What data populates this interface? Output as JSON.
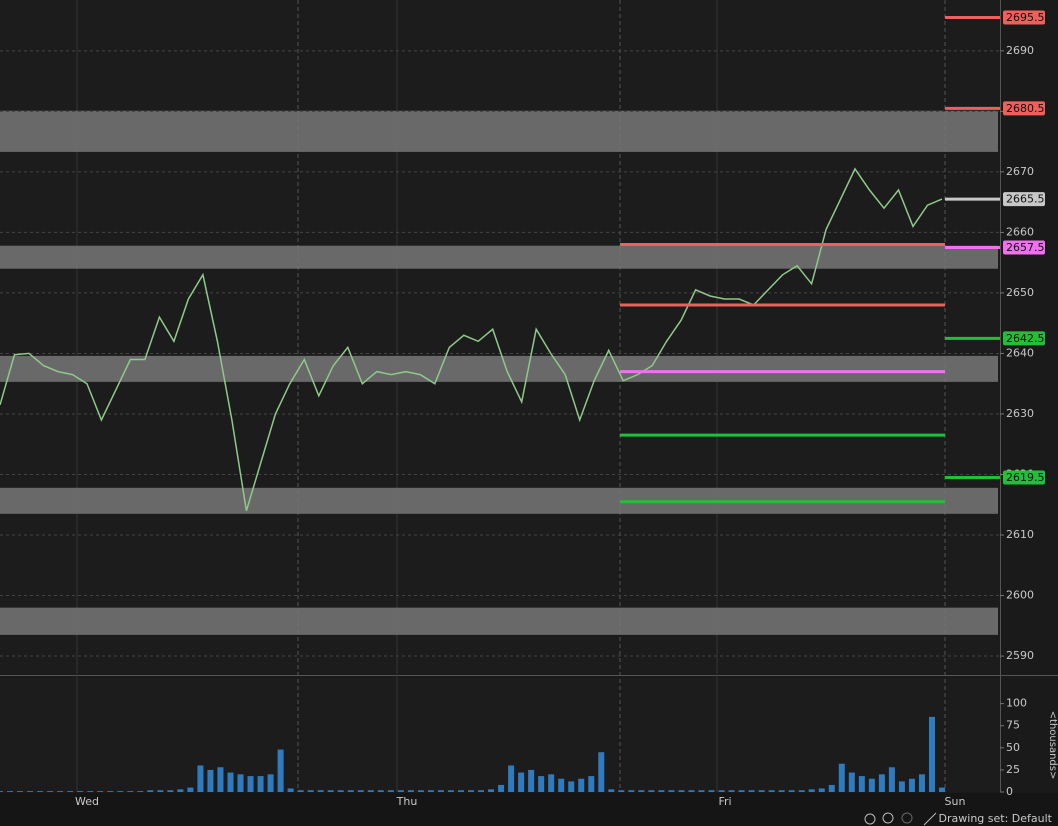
{
  "chart_data": [
    {
      "type": "line",
      "color": "#8fc98a",
      "values": [
        2631.5,
        2639.8,
        2640,
        2638,
        2637,
        2636.5,
        2635,
        2629,
        2634,
        2639,
        2639,
        2646,
        2642,
        2649,
        2653,
        2642,
        2629,
        2614,
        2622,
        2630,
        2635,
        2639,
        2633,
        2638,
        2641,
        2635,
        2637,
        2636.5,
        2637,
        2636.5,
        2635,
        2641,
        2643,
        2642,
        2644,
        2637,
        2632,
        2644,
        2640,
        2636.5,
        2629,
        2635.5,
        2640.5,
        2635.5,
        2636.5,
        2638,
        2642,
        2645.5,
        2650.5,
        2649.5,
        2649,
        2649,
        2648,
        2650.5,
        2653,
        2654.5,
        2651.5,
        2660.5,
        2665.5,
        2670.5,
        2667,
        2664,
        2667,
        2661,
        2664.5,
        2665.5
      ],
      "ylim": [
        2587.2,
        2698.4
      ],
      "yticks": [
        2590,
        2600,
        2610,
        2620,
        2630,
        2640,
        2650,
        2660,
        2670,
        2680,
        2690
      ],
      "grid": true,
      "x_labels": [
        "Wed",
        "Thu",
        "Fri",
        "Sun"
      ],
      "zones": [
        {
          "from": 2673.3,
          "to": 2680.1
        },
        {
          "from": 2654,
          "to": 2657.8
        },
        {
          "from": 2635.3,
          "to": 2639.6
        },
        {
          "from": 2613.5,
          "to": 2617.8
        },
        {
          "from": 2593.5,
          "to": 2598
        }
      ],
      "levels": [
        {
          "value": 2658,
          "color": "#f0605a"
        },
        {
          "value": 2648,
          "color": "#f0605a"
        },
        {
          "value": 2637,
          "color": "#f070f0"
        },
        {
          "value": 2626.5,
          "color": "#22c03a"
        },
        {
          "value": 2615.5,
          "color": "#22c03a"
        }
      ],
      "tags": [
        {
          "value": 2695.5,
          "color": "#f0605a"
        },
        {
          "value": 2680.5,
          "color": "#f0605a"
        },
        {
          "value": 2665.5,
          "color": "#c8c8c8"
        },
        {
          "value": 2657.5,
          "color": "#f070f0"
        },
        {
          "value": 2642.5,
          "color": "#22c03a"
        },
        {
          "value": 2619.5,
          "color": "#22c03a"
        }
      ]
    },
    {
      "type": "bar",
      "label": "<thousands>",
      "color": "#2f7bbf",
      "values": [
        1,
        1,
        1,
        1,
        1,
        1,
        1,
        1,
        1,
        1,
        1,
        1,
        1,
        1,
        1,
        2,
        2,
        2,
        3,
        5,
        30,
        25,
        28,
        22,
        20,
        18,
        18,
        20,
        48,
        4,
        2,
        2,
        2,
        2,
        2,
        2,
        2,
        2,
        2,
        2,
        2,
        2,
        2,
        2,
        2,
        2,
        2,
        2,
        2,
        3,
        8,
        30,
        22,
        25,
        18,
        20,
        15,
        12,
        15,
        18,
        45,
        3,
        2,
        2,
        2,
        2,
        2,
        2,
        2,
        2,
        2,
        2,
        2,
        2,
        2,
        2,
        2,
        2,
        2,
        2,
        2,
        3,
        4,
        8,
        32,
        22,
        18,
        15,
        20,
        28,
        12,
        15,
        20,
        85,
        5
      ],
      "ylim": [
        0,
        129
      ],
      "yticks": [
        0,
        25,
        50,
        75,
        100
      ]
    }
  ],
  "footer": {
    "drawing_set": "Drawing set: Default"
  }
}
